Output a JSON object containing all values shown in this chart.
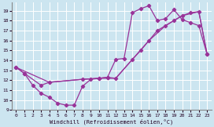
{
  "xlabel": "Windchill (Refroidissement éolien,°C)",
  "background_color": "#cce5f0",
  "grid_color": "#ffffff",
  "line_color": "#993399",
  "xlim": [
    -0.5,
    23.5
  ],
  "ylim": [
    9.0,
    19.8
  ],
  "xticks": [
    0,
    1,
    2,
    3,
    4,
    5,
    6,
    7,
    8,
    9,
    10,
    11,
    12,
    13,
    14,
    15,
    16,
    17,
    18,
    19,
    20,
    21,
    22,
    23
  ],
  "yticks": [
    9,
    10,
    11,
    12,
    13,
    14,
    15,
    16,
    17,
    18,
    19
  ],
  "line1_x": [
    0,
    1,
    2,
    3,
    4,
    5,
    6,
    7,
    8,
    9,
    10,
    11,
    12,
    13,
    14,
    15,
    16,
    17,
    18,
    19,
    20,
    21,
    22,
    23
  ],
  "line1_y": [
    13.3,
    12.7,
    11.5,
    10.7,
    10.3,
    9.7,
    9.5,
    9.5,
    11.4,
    12.1,
    12.2,
    12.3,
    14.1,
    14.2,
    18.8,
    19.2,
    19.5,
    18.0,
    18.2,
    19.1,
    18.1,
    17.8,
    17.5,
    14.6
  ],
  "line2_x": [
    0,
    1,
    3,
    4,
    8,
    10,
    11,
    12,
    14,
    15,
    16,
    17,
    18,
    19,
    20,
    21,
    22,
    23
  ],
  "line2_y": [
    13.3,
    12.7,
    11.5,
    11.8,
    12.1,
    12.2,
    12.3,
    12.2,
    14.1,
    15.0,
    16.0,
    17.0,
    17.5,
    18.0,
    18.5,
    18.8,
    18.9,
    14.6
  ],
  "line3_x": [
    0,
    4,
    8,
    10,
    12,
    14,
    16,
    18,
    20,
    22,
    23
  ],
  "line3_y": [
    13.3,
    11.8,
    12.1,
    12.2,
    12.2,
    14.1,
    16.0,
    17.5,
    18.5,
    18.9,
    14.6
  ]
}
